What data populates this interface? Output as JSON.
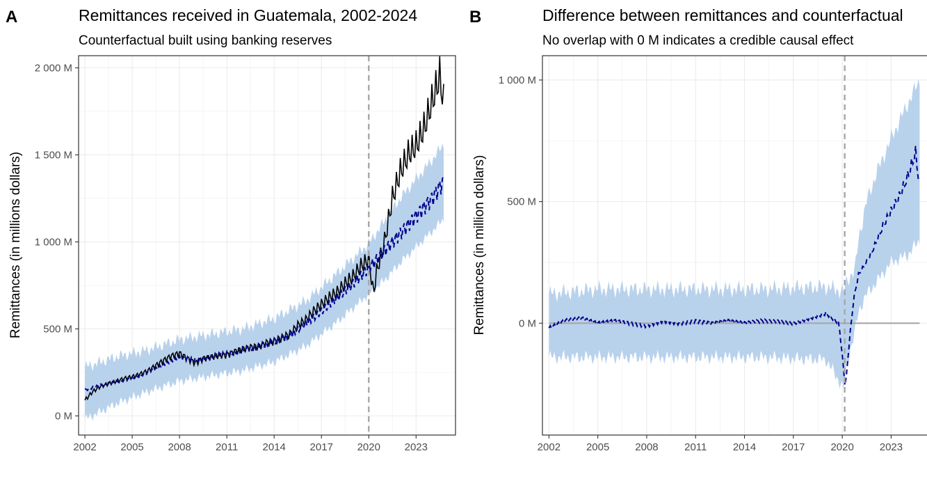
{
  "chart_data": [
    {
      "panel": "A",
      "type": "line",
      "title": "Remittances received in Guatemala, 2002-2024",
      "subtitle": "Counterfactual built using banking reserves",
      "xlabel": "",
      "ylabel": "Remittances (in millions dollars)",
      "xlim": [
        2001.6,
        2025.5
      ],
      "ylim": [
        -110,
        2070
      ],
      "x_ticks": [
        2002,
        2005,
        2008,
        2011,
        2014,
        2017,
        2020,
        2023
      ],
      "x_tick_labels": [
        "2002",
        "2005",
        "2008",
        "2011",
        "2014",
        "2017",
        "2020",
        "2023"
      ],
      "y_ticks": [
        0,
        500,
        1000,
        1500,
        2000
      ],
      "y_tick_labels": [
        "0 M",
        "500 M",
        "1 000 M",
        "1 500 M",
        "2 000 M"
      ],
      "intervention_x": 2020.0,
      "grid": true,
      "colors": {
        "observed": "#000000",
        "counterfactual": "#00008b",
        "band": "#b9d2ec",
        "vline": "#a6a6a6"
      },
      "series": [
        {
          "style": "solid",
          "x": [
            2002.0,
            2002.5,
            2003.0,
            2003.5,
            2004.0,
            2004.5,
            2005.0,
            2005.5,
            2006.0,
            2006.5,
            2007.0,
            2007.5,
            2008.0,
            2008.5,
            2009.0,
            2009.5,
            2010.0,
            2010.5,
            2011.0,
            2011.5,
            2012.0,
            2012.5,
            2013.0,
            2013.5,
            2014.0,
            2014.5,
            2015.0,
            2015.5,
            2016.0,
            2016.5,
            2017.0,
            2017.5,
            2018.0,
            2018.5,
            2019.0,
            2019.5,
            2020.0,
            2020.3,
            2020.5,
            2021.0,
            2021.5,
            2022.0,
            2022.5,
            2023.0,
            2023.5,
            2024.0,
            2024.5,
            2024.75
          ],
          "y": [
            90,
            140,
            170,
            185,
            200,
            215,
            225,
            240,
            260,
            290,
            320,
            345,
            360,
            330,
            305,
            330,
            340,
            350,
            350,
            370,
            385,
            395,
            400,
            420,
            430,
            450,
            470,
            520,
            550,
            600,
            640,
            680,
            710,
            760,
            800,
            860,
            900,
            700,
            830,
            1000,
            1250,
            1400,
            1500,
            1550,
            1650,
            1800,
            1950,
            1800
          ]
        },
        {
          "style": "dashed",
          "x": [
            2002.0,
            2003.0,
            2004.0,
            2005.0,
            2006.0,
            2007.0,
            2008.0,
            2009.0,
            2010.0,
            2011.0,
            2012.0,
            2013.0,
            2014.0,
            2015.0,
            2016.0,
            2017.0,
            2018.0,
            2019.0,
            2020.0,
            2021.0,
            2022.0,
            2023.0,
            2024.0,
            2024.75
          ],
          "y": [
            150,
            175,
            195,
            215,
            250,
            290,
            330,
            320,
            340,
            355,
            375,
            395,
            425,
            460,
            530,
            600,
            680,
            760,
            850,
            950,
            1050,
            1150,
            1250,
            1350
          ]
        }
      ],
      "band": {
        "x": [
          2002.0,
          2004.0,
          2006.0,
          2008.0,
          2010.0,
          2012.0,
          2014.0,
          2016.0,
          2018.0,
          2020.0,
          2021.0,
          2022.0,
          2023.0,
          2024.0,
          2024.75
        ],
        "lower": [
          -20,
          70,
          140,
          200,
          230,
          260,
          310,
          400,
          540,
          700,
          780,
          880,
          970,
          1060,
          1130
        ],
        "upper": [
          280,
          340,
          380,
          440,
          470,
          500,
          560,
          660,
          820,
          990,
          1120,
          1250,
          1360,
          1470,
          1560
        ]
      }
    },
    {
      "panel": "B",
      "type": "line",
      "title": "Difference between remittances and counterfactual",
      "subtitle": "No overlap with 0 M indicates a credible causal effect",
      "xlabel": "",
      "ylabel": "Remittances (in million dollars)",
      "xlim": [
        2001.6,
        2025.5
      ],
      "ylim": [
        -460,
        1100
      ],
      "x_ticks": [
        2002,
        2005,
        2008,
        2011,
        2014,
        2017,
        2020,
        2023
      ],
      "x_tick_labels": [
        "2002",
        "2005",
        "2008",
        "2011",
        "2014",
        "2017",
        "2020",
        "2023"
      ],
      "y_ticks": [
        0,
        500,
        1000
      ],
      "y_tick_labels": [
        "0 M",
        "500 M",
        "1 000 M"
      ],
      "intervention_x": 2020.15,
      "zero_line": {
        "x": [
          2002.0,
          2024.75
        ],
        "y": 0
      },
      "grid": true,
      "colors": {
        "difference": "#00008b",
        "band": "#b9d2ec",
        "vline": "#a6a6a6",
        "zero": "#a6a6a6"
      },
      "series": [
        {
          "style": "dashed",
          "x": [
            2002.0,
            2003.0,
            2004.0,
            2005.0,
            2006.0,
            2007.0,
            2008.0,
            2009.0,
            2010.0,
            2011.0,
            2012.0,
            2013.0,
            2014.0,
            2015.0,
            2016.0,
            2017.0,
            2018.0,
            2019.0,
            2019.8,
            2020.2,
            2020.4,
            2020.7,
            2021.0,
            2021.5,
            2022.0,
            2022.5,
            2023.0,
            2023.5,
            2024.0,
            2024.5,
            2024.75
          ],
          "y": [
            -20,
            10,
            20,
            0,
            10,
            0,
            -10,
            10,
            0,
            10,
            0,
            10,
            0,
            10,
            10,
            0,
            20,
            40,
            0,
            -270,
            -100,
            100,
            200,
            250,
            320,
            400,
            460,
            520,
            600,
            700,
            560
          ]
        }
      ],
      "band": {
        "x": [
          2002.0,
          2005.0,
          2010.0,
          2015.0,
          2019.0,
          2020.1,
          2020.3,
          2020.8,
          2021.0,
          2021.5,
          2022.0,
          2023.0,
          2024.0,
          2024.75
        ],
        "lower": [
          -140,
          -140,
          -140,
          -140,
          -150,
          -270,
          -160,
          -30,
          50,
          120,
          160,
          250,
          280,
          340
        ],
        "upper": [
          120,
          140,
          140,
          140,
          150,
          130,
          180,
          220,
          350,
          500,
          600,
          760,
          900,
          1000
        ]
      }
    }
  ]
}
